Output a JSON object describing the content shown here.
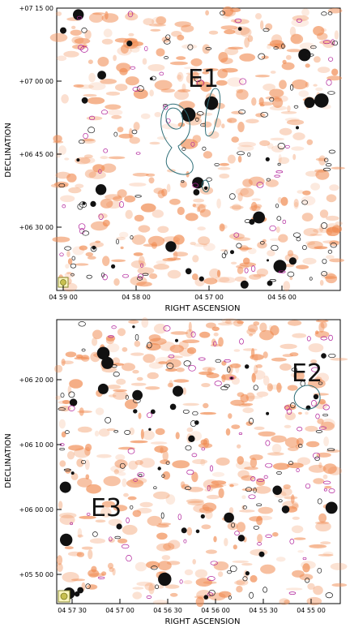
{
  "panels": [
    {
      "region_label": "E1",
      "ylabel": "DECLINATION",
      "xlabel": "RIGHT ASCENSION",
      "y_ticks": [
        "+07 15 00",
        "+07 00 00",
        "+06 45 00",
        "+06 30 00"
      ],
      "x_ticks": [
        "04 59 00",
        "04 58 00",
        "04 57 00",
        "04 56 00"
      ]
    },
    {
      "region_labels": [
        "E2",
        "E3"
      ],
      "ylabel": "DECLINATION",
      "xlabel": "RIGHT ASCENSION",
      "y_ticks": [
        "+06 20 00",
        "+06 10 00",
        "+06 00 00",
        "+05 50 00"
      ],
      "x_ticks": [
        "04 57 30",
        "04 57 00",
        "04 56 30",
        "04 56 00",
        "04 55 30",
        "04 55 00"
      ]
    }
  ],
  "colors": {
    "emission": "#f08a50",
    "contour_dark": "#1a1a1a",
    "contour_magenta": "#b0209a",
    "contour_teal": "#2f6f78",
    "beam_marker": "#c8c050"
  }
}
